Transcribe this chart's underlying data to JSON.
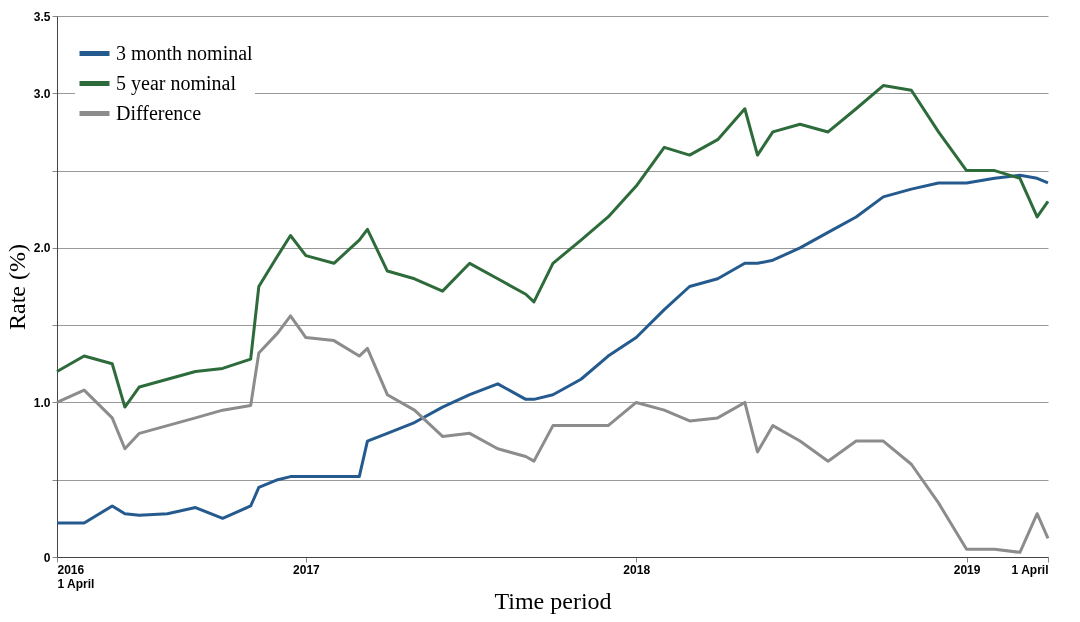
{
  "chart_data": {
    "type": "line",
    "xlabel": "Time period",
    "ylabel": "Rate (%)",
    "x": [
      "2016-04-01",
      "2016-05-01",
      "2016-06-01",
      "2016-06-15",
      "2016-07-01",
      "2016-08-01",
      "2016-09-01",
      "2016-10-01",
      "2016-11-01",
      "2016-11-10",
      "2016-12-01",
      "2016-12-15",
      "2017-01-01",
      "2017-02-01",
      "2017-03-01",
      "2017-03-10",
      "2017-04-01",
      "2017-05-01",
      "2017-06-01",
      "2017-07-01",
      "2017-08-01",
      "2017-09-01",
      "2017-09-10",
      "2017-10-01",
      "2017-11-01",
      "2017-12-01",
      "2018-01-01",
      "2018-02-01",
      "2018-03-01",
      "2018-04-01",
      "2018-05-01",
      "2018-05-15",
      "2018-06-01",
      "2018-07-01",
      "2018-08-01",
      "2018-09-01",
      "2018-10-01",
      "2018-11-01",
      "2018-12-01",
      "2019-01-01",
      "2019-02-01",
      "2019-03-01",
      "2019-03-20",
      "2019-04-01"
    ],
    "series": [
      {
        "name": "3 month nominal",
        "color": "#255a8e",
        "values": [
          0.22,
          0.22,
          0.33,
          0.28,
          0.27,
          0.28,
          0.32,
          0.25,
          0.33,
          0.45,
          0.5,
          0.52,
          0.52,
          0.52,
          0.52,
          0.75,
          0.8,
          0.87,
          0.97,
          1.05,
          1.12,
          1.02,
          1.02,
          1.05,
          1.15,
          1.3,
          1.42,
          1.6,
          1.75,
          1.8,
          1.9,
          1.9,
          1.92,
          2.0,
          2.1,
          2.2,
          2.33,
          2.38,
          2.42,
          2.42,
          2.45,
          2.47,
          2.45,
          2.42
        ]
      },
      {
        "name": "5 year nominal",
        "color": "#2e6b3a",
        "values": [
          1.2,
          1.3,
          1.25,
          0.97,
          1.1,
          1.15,
          1.2,
          1.22,
          1.28,
          1.75,
          1.95,
          2.08,
          1.95,
          1.9,
          2.05,
          2.12,
          1.85,
          1.8,
          1.72,
          1.9,
          1.8,
          1.7,
          1.65,
          1.9,
          2.05,
          2.2,
          2.4,
          2.65,
          2.6,
          2.7,
          2.9,
          2.6,
          2.75,
          2.8,
          2.75,
          2.9,
          3.05,
          3.02,
          2.75,
          2.5,
          2.5,
          2.45,
          2.2,
          2.3
        ]
      },
      {
        "name": "Difference",
        "color": "#8c8c8c",
        "values": [
          1.0,
          1.08,
          0.9,
          0.7,
          0.8,
          0.85,
          0.9,
          0.95,
          0.98,
          1.32,
          1.45,
          1.56,
          1.42,
          1.4,
          1.3,
          1.35,
          1.05,
          0.95,
          0.78,
          0.8,
          0.7,
          0.65,
          0.62,
          0.85,
          0.85,
          0.85,
          1.0,
          0.95,
          0.88,
          0.9,
          1.0,
          0.68,
          0.85,
          0.75,
          0.62,
          0.75,
          0.75,
          0.6,
          0.35,
          0.05,
          0.05,
          0.03,
          0.28,
          0.12
        ]
      }
    ],
    "xlim": [
      "2016-04-01",
      "2019-04-01"
    ],
    "xticks": [
      {
        "value": "2016-04-01",
        "label": "2016\n1 April"
      },
      {
        "value": "2017-01-01",
        "label": "2017"
      },
      {
        "value": "2018-01-01",
        "label": "2018"
      },
      {
        "value": "2019-01-01",
        "label": "2019"
      },
      {
        "value": "2019-04-01",
        "label": "1 April"
      }
    ],
    "ylim": [
      0,
      3.5
    ],
    "yticks": [
      {
        "value": 0,
        "label": "0"
      },
      {
        "value": 0.5,
        "label": null
      },
      {
        "value": 1,
        "label": "1.0"
      },
      {
        "value": 1.5,
        "label": null
      },
      {
        "value": 2,
        "label": "2.0"
      },
      {
        "value": 2.5,
        "label": null
      },
      {
        "value": 3,
        "label": "3.0"
      },
      {
        "value": 3.5,
        "label": "3.5"
      }
    ],
    "grid": "y",
    "legend": "top left",
    "line_style": "solid"
  }
}
